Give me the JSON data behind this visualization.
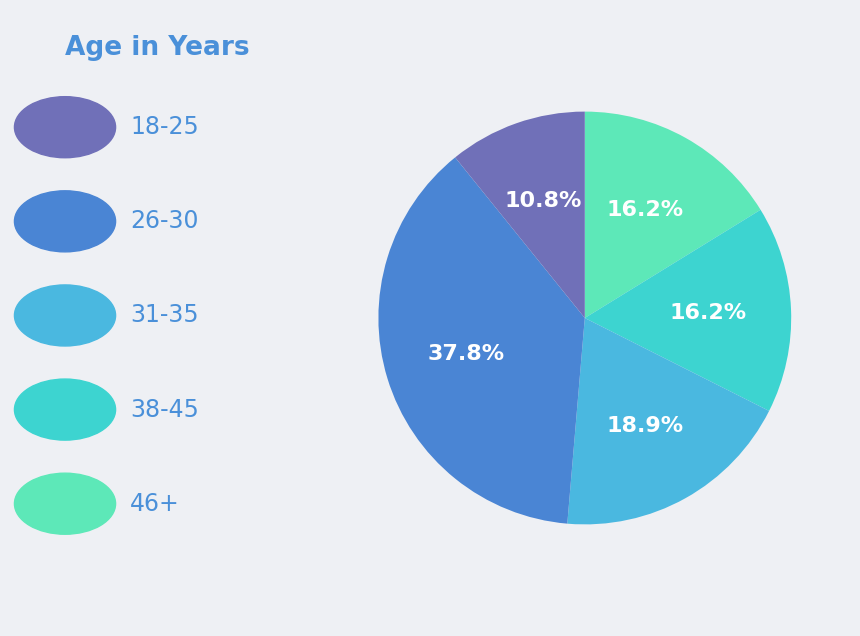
{
  "title": "Age in Years",
  "title_color": "#4a90d9",
  "categories": [
    "18-25",
    "26-30",
    "31-35",
    "38-45",
    "46+"
  ],
  "legend_colors": [
    "#7070b8",
    "#4a85d4",
    "#4ab8e0",
    "#3dd4d0",
    "#5de8b8"
  ],
  "pie_order": [
    "46+",
    "38-45",
    "31-35",
    "26-30",
    "18-25"
  ],
  "pie_values": [
    16.2,
    16.2,
    18.9,
    37.8,
    10.8
  ],
  "pie_colors": [
    "#5de8b8",
    "#3dd4d0",
    "#4ab8e0",
    "#4a85d4",
    "#7070b8"
  ],
  "pie_pct_labels": [
    "16.2%",
    "16.2%",
    "18.9%",
    "37.8%",
    "10.8%"
  ],
  "background_color": "#eef0f4",
  "legend_label_color": "#4a90d9",
  "figsize": [
    8.6,
    6.36
  ]
}
